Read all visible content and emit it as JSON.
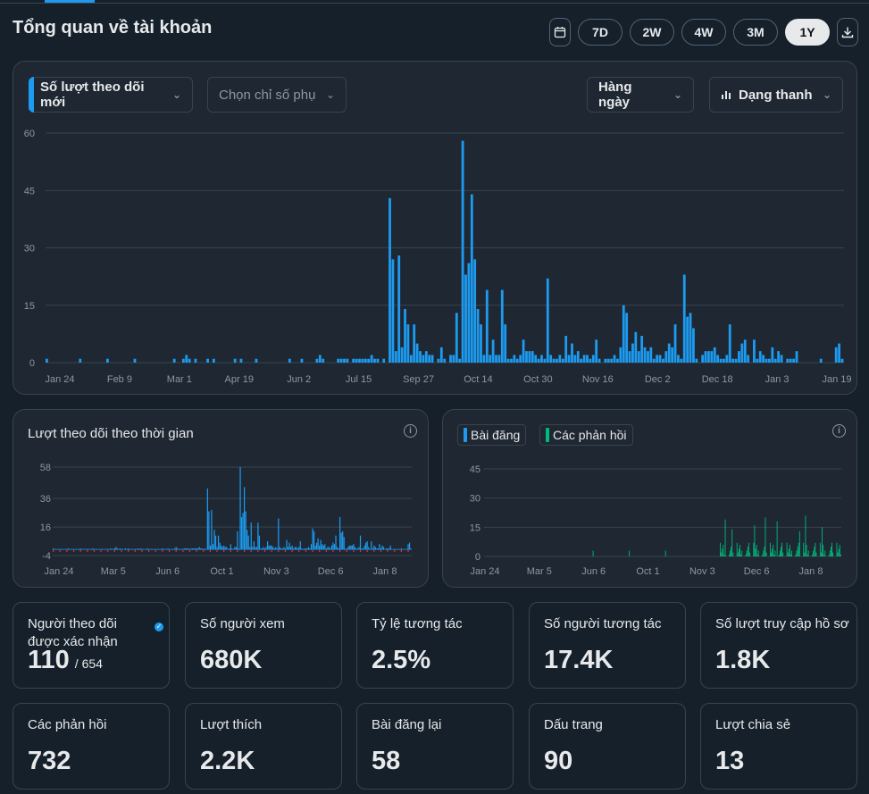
{
  "header": {
    "title": "Tổng quan về tài khoản",
    "ranges": [
      "7D",
      "2W",
      "4W",
      "3M",
      "1Y"
    ],
    "active_range": "1Y"
  },
  "main_chart": {
    "metric_label": "Số lượt theo dõi mới",
    "secondary_placeholder": "Chọn chỉ số phụ",
    "granularity_label": "Hàng ngày",
    "chart_type_label": "Dạng thanh"
  },
  "followers_card": {
    "title": "Lượt theo dõi theo thời gian"
  },
  "posts_card": {
    "legend_posts": "Bài đăng",
    "legend_replies": "Các phản hồi"
  },
  "stats": [
    {
      "label": "Người theo dõi được xác nhận",
      "value": "110",
      "sub": "/ 654"
    },
    {
      "label": "Số người xem",
      "value": "680K"
    },
    {
      "label": "Tỷ lệ tương tác",
      "value": "2.5%"
    },
    {
      "label": "Số người tương tác",
      "value": "17.4K"
    },
    {
      "label": "Số lượt truy cập hồ sơ",
      "value": "1.8K"
    },
    {
      "label": "Các phản hồi",
      "value": "732"
    },
    {
      "label": "Lượt thích",
      "value": "2.2K"
    },
    {
      "label": "Bài đăng lại",
      "value": "58"
    },
    {
      "label": "Dấu trang",
      "value": "90"
    },
    {
      "label": "Lượt chia sẻ",
      "value": "13"
    }
  ],
  "colors": {
    "accent": "#1d9bf0",
    "replies": "#00ba7c",
    "negative": "#f4212e"
  },
  "chart_data": [
    {
      "type": "bar",
      "title": "",
      "ylim": [
        0,
        60
      ],
      "yticks": [
        60,
        45,
        30,
        15,
        0
      ],
      "xticks": [
        "Jan 24",
        "Feb 9",
        "Mar 1",
        "Apr 19",
        "Jun 2",
        "Jul 15",
        "Sep 27",
        "Oct 14",
        "Oct 30",
        "Nov 16",
        "Dec 2",
        "Dec 18",
        "Jan 3",
        "Jan 19"
      ],
      "series": [
        {
          "name": "Số lượt theo dõi mới",
          "values": [
            1,
            0,
            0,
            0,
            0,
            0,
            0,
            0,
            0,
            0,
            0,
            1,
            0,
            0,
            0,
            0,
            0,
            0,
            0,
            0,
            1,
            0,
            0,
            0,
            0,
            0,
            0,
            0,
            0,
            1,
            0,
            0,
            0,
            0,
            0,
            0,
            0,
            0,
            0,
            0,
            0,
            0,
            1,
            0,
            0,
            1,
            2,
            1,
            0,
            1,
            0,
            0,
            0,
            1,
            0,
            1,
            0,
            0,
            0,
            0,
            0,
            0,
            1,
            0,
            1,
            0,
            0,
            0,
            0,
            1,
            0,
            0,
            0,
            0,
            0,
            0,
            0,
            0,
            0,
            0,
            1,
            0,
            0,
            0,
            1,
            0,
            0,
            0,
            0,
            1,
            2,
            1,
            0,
            0,
            0,
            0,
            1,
            1,
            1,
            1,
            0,
            1,
            1,
            1,
            1,
            1,
            1,
            2,
            1,
            1,
            0,
            1,
            0,
            43,
            27,
            3,
            28,
            4,
            14,
            10,
            2,
            10,
            5,
            3,
            2,
            3,
            2,
            2,
            0,
            1,
            4,
            1,
            0,
            2,
            2,
            13,
            1,
            58,
            23,
            26,
            44,
            27,
            14,
            10,
            2,
            19,
            2,
            6,
            2,
            2,
            19,
            10,
            1,
            1,
            2,
            1,
            2,
            6,
            3,
            3,
            3,
            2,
            1,
            2,
            1,
            22,
            2,
            1,
            1,
            2,
            1,
            7,
            2,
            5,
            2,
            3,
            1,
            2,
            2,
            1,
            2,
            6,
            1,
            0,
            1,
            1,
            1,
            2,
            1,
            4,
            15,
            13,
            3,
            5,
            8,
            3,
            7,
            4,
            3,
            4,
            1,
            2,
            2,
            1,
            3,
            5,
            4,
            10,
            2,
            1,
            23,
            12,
            13,
            9,
            1,
            0,
            2,
            3,
            3,
            3,
            4,
            2,
            1,
            1,
            2,
            10,
            1,
            1,
            3,
            5,
            6,
            2,
            0,
            6,
            1,
            3,
            2,
            1,
            1,
            4,
            1,
            3,
            2,
            0,
            1,
            1,
            1,
            3,
            0,
            0,
            0,
            0,
            0,
            0,
            0,
            1,
            0,
            0,
            0,
            0,
            4,
            5,
            1
          ]
        }
      ]
    },
    {
      "type": "bar",
      "title": "Lượt theo dõi theo thời gian",
      "yticks": [
        58,
        36,
        16,
        -4
      ],
      "ylim": [
        -4,
        58
      ],
      "xticks": [
        "Jan 24",
        "Mar 5",
        "Jun 6",
        "Oct 1",
        "Nov 3",
        "Dec 6",
        "Jan 8"
      ]
    },
    {
      "type": "bar",
      "title": "",
      "yticks": [
        45,
        30,
        15,
        0
      ],
      "ylim": [
        0,
        45
      ],
      "xticks": [
        "Jan 24",
        "Mar 5",
        "Jun 6",
        "Oct 1",
        "Nov 3",
        "Dec 6",
        "Jan 8"
      ],
      "series": [
        {
          "name": "Bài đăng"
        },
        {
          "name": "Các phản hồi"
        }
      ]
    }
  ]
}
